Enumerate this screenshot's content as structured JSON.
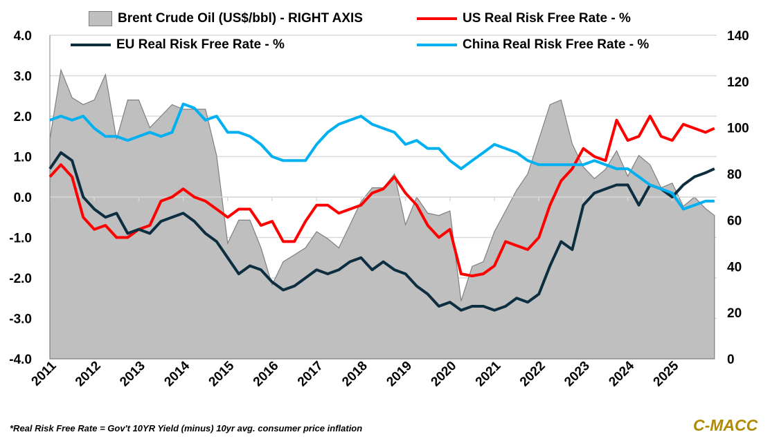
{
  "chart_data": {
    "type": "line",
    "title": "",
    "xlabel": "",
    "ylabel_left": "Real Risk Free Rate - %",
    "ylabel_right": "US$/bbl",
    "ylim_left": [
      -4,
      4
    ],
    "ylim_right": [
      0,
      140
    ],
    "xlim": [
      2011,
      2026
    ],
    "grid": true,
    "legend_placement": "top",
    "left_ticks": [
      "4.0",
      "3.0",
      "2.0",
      "1.0",
      "0.0",
      "-1.0",
      "-2.0",
      "-3.0",
      "-4.0"
    ],
    "left_tick_values": [
      4,
      3,
      2,
      1,
      0,
      -1,
      -2,
      -3,
      -4
    ],
    "right_ticks": [
      "140",
      "120",
      "100",
      "80",
      "60",
      "40",
      "20",
      "0"
    ],
    "right_tick_values": [
      140,
      120,
      100,
      80,
      60,
      40,
      20,
      0
    ],
    "x_ticks": [
      "2011",
      "2012",
      "2013",
      "2014",
      "2015",
      "2016",
      "2017",
      "2018",
      "2019",
      "2020",
      "2021",
      "2022",
      "2023",
      "2024",
      "2025"
    ],
    "x_tick_values": [
      2011,
      2012,
      2013,
      2014,
      2015,
      2016,
      2017,
      2018,
      2019,
      2020,
      2021,
      2022,
      2023,
      2024,
      2025
    ],
    "x": [
      2011.0,
      2011.25,
      2011.5,
      2011.75,
      2012.0,
      2012.25,
      2012.5,
      2012.75,
      2013.0,
      2013.25,
      2013.5,
      2013.75,
      2014.0,
      2014.25,
      2014.5,
      2014.75,
      2015.0,
      2015.25,
      2015.5,
      2015.75,
      2016.0,
      2016.25,
      2016.5,
      2016.75,
      2017.0,
      2017.25,
      2017.5,
      2017.75,
      2018.0,
      2018.25,
      2018.5,
      2018.75,
      2019.0,
      2019.25,
      2019.5,
      2019.75,
      2020.0,
      2020.25,
      2020.5,
      2020.75,
      2021.0,
      2021.25,
      2021.5,
      2021.75,
      2022.0,
      2022.25,
      2022.5,
      2022.75,
      2023.0,
      2023.25,
      2023.5,
      2023.75,
      2024.0,
      2024.25,
      2024.5,
      2024.75,
      2025.0,
      2025.25,
      2025.5,
      2025.75,
      2025.95
    ],
    "series": [
      {
        "name": "Brent Crude Oil (US$/bbl) - RIGHT AXIS",
        "axis": "right",
        "kind": "area",
        "color": "#bfbfbf",
        "values": [
          95,
          125,
          113,
          110,
          112,
          123,
          95,
          112,
          112,
          100,
          105,
          110,
          108,
          108,
          108,
          88,
          50,
          60,
          60,
          48,
          32,
          42,
          45,
          48,
          55,
          52,
          48,
          58,
          68,
          74,
          74,
          80,
          58,
          70,
          63,
          62,
          64,
          25,
          40,
          42,
          55,
          64,
          73,
          80,
          95,
          110,
          112,
          93,
          83,
          78,
          82,
          90,
          79,
          88,
          84,
          74,
          76,
          66,
          70,
          65,
          62
        ]
      },
      {
        "name": "US Real Risk Free Rate - %",
        "axis": "left",
        "kind": "line",
        "color": "#ff0000",
        "values": [
          0.5,
          0.8,
          0.5,
          -0.5,
          -0.8,
          -0.7,
          -1.0,
          -1.0,
          -0.8,
          -0.7,
          -0.1,
          0.0,
          0.2,
          0.0,
          -0.1,
          -0.3,
          -0.5,
          -0.3,
          -0.3,
          -0.7,
          -0.6,
          -1.1,
          -1.1,
          -0.6,
          -0.2,
          -0.2,
          -0.4,
          -0.3,
          -0.2,
          0.1,
          0.2,
          0.5,
          0.1,
          -0.2,
          -0.7,
          -1.0,
          -0.8,
          -1.9,
          -1.95,
          -1.9,
          -1.7,
          -1.1,
          -1.2,
          -1.3,
          -1.0,
          -0.2,
          0.4,
          0.7,
          1.2,
          1.0,
          0.9,
          1.9,
          1.4,
          1.5,
          2.0,
          1.5,
          1.4,
          1.8,
          1.7,
          1.6,
          1.7
        ]
      },
      {
        "name": "EU Real Risk Free Rate - %",
        "axis": "left",
        "kind": "line",
        "color": "#0d2d40",
        "values": [
          0.7,
          1.1,
          0.9,
          0.0,
          -0.3,
          -0.5,
          -0.4,
          -0.9,
          -0.8,
          -0.9,
          -0.6,
          -0.5,
          -0.4,
          -0.6,
          -0.9,
          -1.1,
          -1.5,
          -1.9,
          -1.7,
          -1.8,
          -2.1,
          -2.3,
          -2.2,
          -2.0,
          -1.8,
          -1.9,
          -1.8,
          -1.6,
          -1.5,
          -1.8,
          -1.6,
          -1.8,
          -1.9,
          -2.2,
          -2.4,
          -2.7,
          -2.6,
          -2.8,
          -2.7,
          -2.7,
          -2.8,
          -2.7,
          -2.5,
          -2.6,
          -2.4,
          -1.7,
          -1.1,
          -1.3,
          -0.2,
          0.1,
          0.2,
          0.3,
          0.3,
          -0.2,
          0.3,
          0.2,
          0.0,
          0.3,
          0.5,
          0.6,
          0.7
        ]
      },
      {
        "name": "China Real Risk Free Rate - %",
        "axis": "left",
        "kind": "line",
        "color": "#00b0f0",
        "values": [
          1.9,
          2.0,
          1.9,
          2.0,
          1.7,
          1.5,
          1.5,
          1.4,
          1.5,
          1.6,
          1.5,
          1.6,
          2.3,
          2.2,
          1.9,
          2.0,
          1.6,
          1.6,
          1.5,
          1.3,
          1.0,
          0.9,
          0.9,
          0.9,
          1.3,
          1.6,
          1.8,
          1.9,
          2.0,
          1.8,
          1.7,
          1.6,
          1.3,
          1.4,
          1.2,
          1.2,
          0.9,
          0.7,
          0.9,
          1.1,
          1.3,
          1.2,
          1.1,
          0.9,
          0.8,
          0.8,
          0.8,
          0.8,
          0.8,
          0.9,
          0.8,
          0.7,
          0.7,
          0.5,
          0.3,
          0.2,
          0.1,
          -0.3,
          -0.2,
          -0.1,
          -0.1
        ]
      }
    ],
    "footnote": "*Real Risk Free Rate = Gov't 10YR Yield (minus) 10yr avg. consumer price inflation"
  },
  "logo": "C-MACC"
}
